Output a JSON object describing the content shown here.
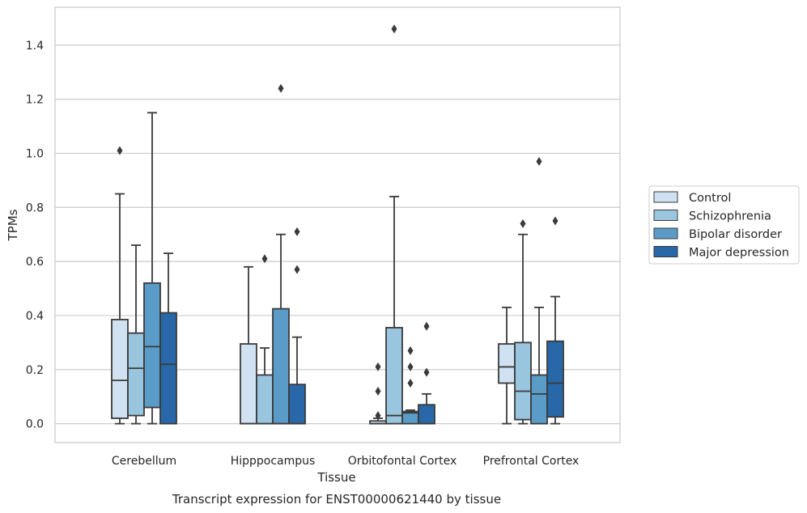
{
  "chart_data": {
    "type": "box",
    "title": "",
    "caption": "Transcript expression for ENST00000621440 by tissue",
    "xlabel": "Tissue",
    "ylabel": "TPMs",
    "ylim": [
      -0.07,
      1.54
    ],
    "yticks": [
      0.0,
      0.2,
      0.4,
      0.6,
      0.8,
      1.0,
      1.2,
      1.4
    ],
    "ytick_labels": [
      "0.0",
      "0.2",
      "0.4",
      "0.6",
      "0.8",
      "1.0",
      "1.2",
      "1.4"
    ],
    "grid": "horizontal",
    "legend_position": "right",
    "categories": [
      "Cerebellum",
      "Hipppocampus",
      "Orbitofontal Cortex",
      "Prefrontal Cortex"
    ],
    "series": [
      {
        "name": "Control",
        "color": "#d0e1f1",
        "boxes": [
          {
            "whislo": 0.0,
            "q1": 0.02,
            "med": 0.16,
            "q3": 0.385,
            "whishi": 0.85,
            "fliers": [
              1.01
            ]
          },
          {
            "whislo": 0.0,
            "q1": 0.0,
            "med": 0.0,
            "q3": 0.295,
            "whishi": 0.58,
            "fliers": []
          },
          {
            "whislo": 0.0,
            "q1": 0.0,
            "med": 0.0,
            "q3": 0.01,
            "whishi": 0.02,
            "fliers": [
              0.03,
              0.12,
              0.21
            ]
          },
          {
            "whislo": 0.0,
            "q1": 0.15,
            "med": 0.21,
            "q3": 0.295,
            "whishi": 0.43,
            "fliers": []
          }
        ]
      },
      {
        "name": "Schizophrenia",
        "color": "#9ac5de",
        "boxes": [
          {
            "whislo": 0.0,
            "q1": 0.03,
            "med": 0.205,
            "q3": 0.335,
            "whishi": 0.66,
            "fliers": []
          },
          {
            "whislo": 0.0,
            "q1": 0.0,
            "med": 0.0,
            "q3": 0.18,
            "whishi": 0.28,
            "fliers": [
              0.61
            ]
          },
          {
            "whislo": 0.0,
            "q1": 0.0,
            "med": 0.03,
            "q3": 0.355,
            "whishi": 0.84,
            "fliers": [
              1.46
            ]
          },
          {
            "whislo": 0.0,
            "q1": 0.015,
            "med": 0.12,
            "q3": 0.3,
            "whishi": 0.7,
            "fliers": [
              0.74
            ]
          }
        ]
      },
      {
        "name": "Bipolar disorder",
        "color": "#5a9bc8",
        "boxes": [
          {
            "whislo": 0.0,
            "q1": 0.06,
            "med": 0.285,
            "q3": 0.52,
            "whishi": 1.15,
            "fliers": []
          },
          {
            "whislo": 0.0,
            "q1": 0.0,
            "med": 0.0,
            "q3": 0.425,
            "whishi": 0.7,
            "fliers": [
              1.24
            ]
          },
          {
            "whislo": 0.0,
            "q1": 0.0,
            "med": 0.04,
            "q3": 0.045,
            "whishi": 0.05,
            "fliers": [
              0.15,
              0.21,
              0.27
            ]
          },
          {
            "whislo": 0.0,
            "q1": 0.0,
            "med": 0.11,
            "q3": 0.18,
            "whishi": 0.43,
            "fliers": [
              0.97
            ]
          }
        ]
      },
      {
        "name": "Major depression",
        "color": "#2868a8",
        "boxes": [
          {
            "whislo": 0.0,
            "q1": 0.0,
            "med": 0.22,
            "q3": 0.41,
            "whishi": 0.63,
            "fliers": []
          },
          {
            "whislo": 0.0,
            "q1": 0.0,
            "med": 0.0,
            "q3": 0.145,
            "whishi": 0.32,
            "fliers": [
              0.57,
              0.71
            ]
          },
          {
            "whislo": 0.0,
            "q1": 0.0,
            "med": 0.0,
            "q3": 0.07,
            "whishi": 0.11,
            "fliers": [
              0.19,
              0.36
            ]
          },
          {
            "whislo": 0.0,
            "q1": 0.025,
            "med": 0.15,
            "q3": 0.305,
            "whishi": 0.47,
            "fliers": [
              0.75
            ]
          }
        ]
      }
    ]
  }
}
